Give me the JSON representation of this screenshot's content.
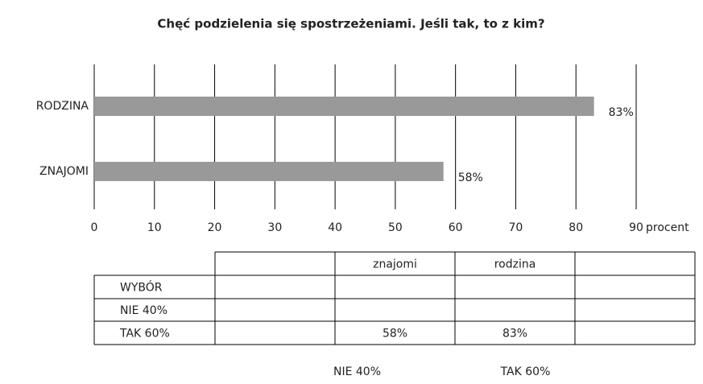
{
  "chart_data": {
    "type": "bar",
    "orientation": "horizontal",
    "title": "Chęć podzielenia się spostrzeżeniami. Jeśli tak, to z kim?",
    "categories": [
      "RODZINA",
      "ZNAJOMI"
    ],
    "values": [
      83,
      58
    ],
    "value_labels": [
      "83%",
      "58%"
    ],
    "color": "#999999",
    "xlabel": "procent",
    "xlim": [
      0,
      90
    ],
    "xticks": [
      0,
      10,
      20,
      30,
      40,
      50,
      60,
      70,
      80,
      90
    ],
    "grid": true
  },
  "table": {
    "columns": [
      "znajomi",
      "rodzina"
    ],
    "rows": [
      {
        "label": "WYBÓR"
      },
      {
        "label": "NIE 40%"
      },
      {
        "label": "TAK 60%",
        "cells": [
          "58%",
          "83%"
        ]
      }
    ]
  },
  "footer_labels": [
    "NIE 40%",
    "TAK 60%"
  ]
}
